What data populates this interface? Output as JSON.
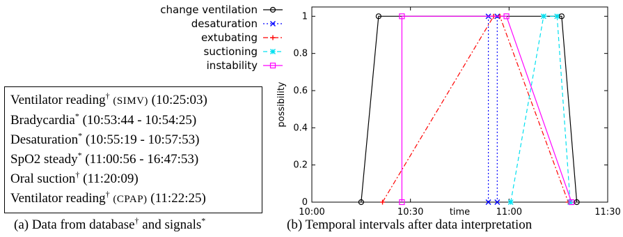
{
  "events_box": {
    "lines": [
      {
        "text": "Ventilator reading",
        "mark": "†",
        "mode": "(SIMV)",
        "time": "(10:25:03)"
      },
      {
        "text": "Bradycardia",
        "mark": "*",
        "mode": "",
        "time": "(10:53:44 - 10:54:25)"
      },
      {
        "text": "Desaturation",
        "mark": "*",
        "mode": "",
        "time": "(10:55:19 - 10:57:53)"
      },
      {
        "text": "SpO2 steady",
        "mark": "*",
        "mode": "",
        "time": "(11:00:56 - 16:47:53)"
      },
      {
        "text": "Oral suction",
        "mark": "†",
        "mode": "",
        "time": "(11:20:09)"
      },
      {
        "text": "Ventilator reading",
        "mark": "†",
        "mode": "(CPAP)",
        "time": "(11:22:25)"
      }
    ]
  },
  "captions": {
    "a": {
      "prefix": "(a)  Data from database",
      "mark1": "†",
      "mid": " and signals",
      "mark2": "*"
    },
    "b": "(b)  Temporal intervals after data interpretation"
  },
  "chart_data": {
    "type": "line",
    "xlabel": "time",
    "ylabel": "possibility",
    "xlim": [
      600,
      690
    ],
    "ylim": [
      0,
      1.05
    ],
    "x_ticks": [
      {
        "value": 600,
        "label": "10:00"
      },
      {
        "value": 630,
        "label": "10:30"
      },
      {
        "value": 660,
        "label": "11:00"
      },
      {
        "value": 690,
        "label": "11:30"
      }
    ],
    "y_ticks": [
      {
        "value": 0,
        "label": "0"
      },
      {
        "value": 0.2,
        "label": "0.2"
      },
      {
        "value": 0.4,
        "label": "0.4"
      },
      {
        "value": 0.6,
        "label": "0.6"
      },
      {
        "value": 0.8,
        "label": "0.8"
      },
      {
        "value": 1,
        "label": "1"
      }
    ],
    "legend_position": "top-left, outside plot",
    "series": [
      {
        "name": "change ventilation",
        "color": "#000000",
        "dash": "",
        "marker": "circle",
        "points": [
          [
            615,
            0
          ],
          [
            620.3,
            1
          ],
          [
            676,
            1
          ],
          [
            680.6,
            0
          ]
        ]
      },
      {
        "name": "desaturation",
        "color": "#0000ff",
        "dash": "dotted",
        "marker": "x",
        "points": [
          [
            653.7,
            0
          ],
          [
            653.7,
            1
          ],
          [
            656.4,
            1
          ],
          [
            656.4,
            0
          ]
        ]
      },
      {
        "name": "extubating",
        "color": "#ff0000",
        "dash": "dashdot",
        "marker": "plus",
        "points": [
          [
            621.5,
            0
          ],
          [
            655.3,
            1
          ],
          [
            657.2,
            1
          ],
          [
            678,
            0
          ]
        ]
      },
      {
        "name": "suctioning",
        "color": "#00e0f0",
        "dash": "dashed",
        "marker": "star",
        "points": [
          [
            660.5,
            0
          ],
          [
            670.5,
            1
          ],
          [
            674.6,
            1
          ],
          [
            678.6,
            0
          ]
        ]
      },
      {
        "name": "instability",
        "color": "#ff00ff",
        "dash": "",
        "marker": "square",
        "points": [
          [
            627.4,
            0
          ],
          [
            627.4,
            1
          ],
          [
            659.2,
            1
          ],
          [
            679,
            0
          ]
        ]
      }
    ]
  }
}
